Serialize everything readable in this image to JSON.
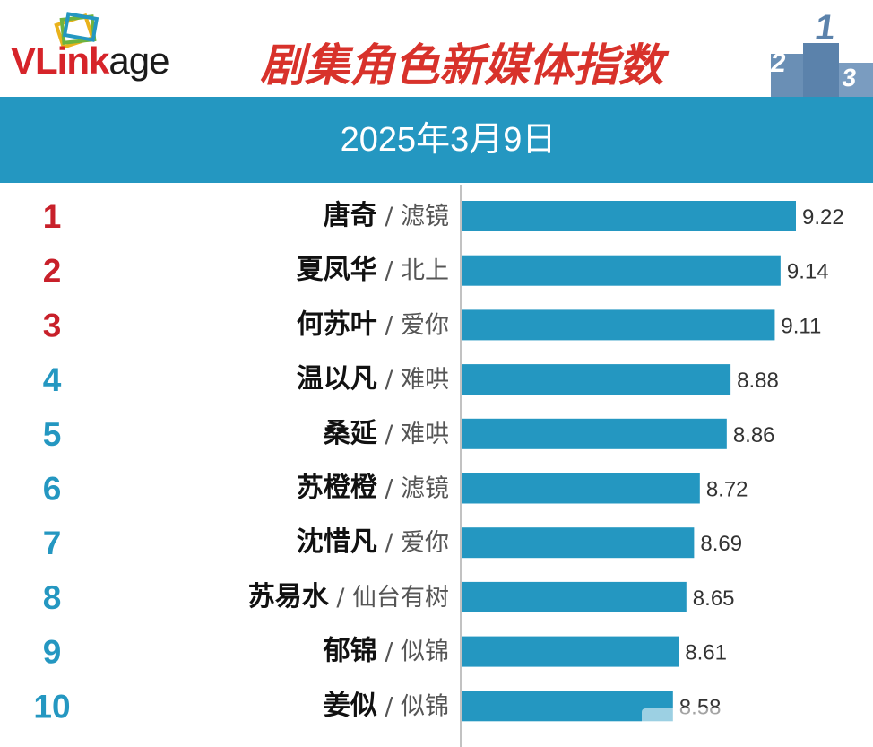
{
  "header": {
    "logo": {
      "part1": "V",
      "part2": "Link",
      "part3": "age"
    },
    "title": "剧集角色新媒体指数",
    "date": "2025年3月9日"
  },
  "chart_data": {
    "type": "bar",
    "orientation": "horizontal",
    "title": "剧集角色新媒体指数",
    "subtitle": "2025年3月9日",
    "ranks": [
      "1",
      "2",
      "3",
      "4",
      "5",
      "6",
      "7",
      "8",
      "9",
      "10"
    ],
    "categories": [
      "唐奇",
      "夏凤华",
      "何苏叶",
      "温以凡",
      "桑延",
      "苏橙橙",
      "沈惜凡",
      "苏易水",
      "郁锦",
      "姜似"
    ],
    "shows": [
      "滤镜",
      "北上",
      "爱你",
      "难哄",
      "难哄",
      "滤镜",
      "爱你",
      "仙台有树",
      "似锦",
      "似锦"
    ],
    "values": [
      9.22,
      9.14,
      9.11,
      8.88,
      8.86,
      8.72,
      8.69,
      8.65,
      8.61,
      8.58
    ],
    "value_labels": [
      "9.22",
      "9.14",
      "9.11",
      "8.88",
      "8.86",
      "8.72",
      "8.69",
      "8.65",
      "8.61",
      "8.58"
    ],
    "xlim": [
      7.48,
      9.35
    ],
    "grid": false,
    "legend": "none",
    "colors": {
      "bar": "#2497c1",
      "rank_top3": "#c8202a",
      "rank_rest": "#2497c1",
      "band": "#2497c1",
      "title": "#d8322b"
    }
  }
}
